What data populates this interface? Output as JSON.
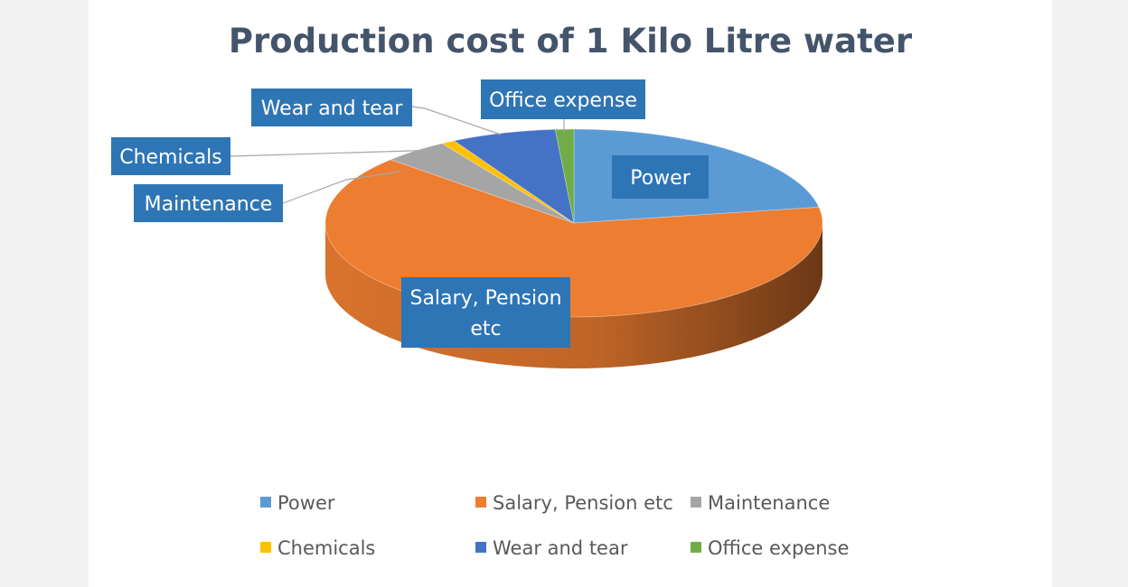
{
  "chart_data": {
    "type": "pie",
    "title": "Production cost of 1 Kilo Litre water",
    "style": "3d",
    "legend_position": "bottom",
    "categories": [
      "Power",
      "Salary, Pension etc",
      "Maintenance",
      "Chemicals",
      "Wear and tear",
      "Office expense"
    ],
    "values": [
      22.3,
      64.5,
      4.3,
      0.9,
      6.8,
      1.2
    ],
    "unit": "%",
    "colors": [
      "#5b9bd5",
      "#ed7d31",
      "#a5a5a5",
      "#ffc000",
      "#4472c4",
      "#70ad47"
    ],
    "data_labels": [
      "Power",
      "Salary, Pension etc",
      "Maintenance",
      "Chemicals",
      "Wear and tear",
      "Office expense"
    ],
    "data_label_fill": "#2e75b6"
  }
}
